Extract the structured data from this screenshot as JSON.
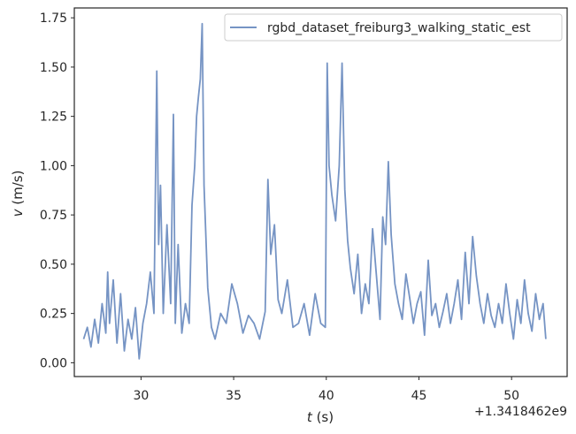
{
  "chart_data": {
    "type": "line",
    "xlabel_italic": "t",
    "xlabel_unit": " (s)",
    "ylabel_italic": "v",
    "ylabel_unit": " (m/s)",
    "x_offset_text": "+1.3418462e9",
    "xlim": [
      26.4,
      53.0
    ],
    "ylim": [
      -0.07,
      1.8
    ],
    "xticks": [
      30,
      35,
      40,
      45,
      50
    ],
    "xtick_labels": [
      "30",
      "35",
      "40",
      "45",
      "50"
    ],
    "yticks": [
      0.0,
      0.25,
      0.5,
      0.75,
      1.0,
      1.25,
      1.5,
      1.75
    ],
    "ytick_labels": [
      "0.00",
      "0.25",
      "0.50",
      "0.75",
      "1.00",
      "1.25",
      "1.50",
      "1.75"
    ],
    "grid": false,
    "legend_position": "top-right",
    "colors": {
      "series": "#7694c4",
      "frame": "#262626"
    },
    "series": [
      {
        "name": "rgbd_dataset_freiburg3_walking_static_est",
        "x": [
          26.9,
          27.1,
          27.3,
          27.5,
          27.7,
          27.9,
          28.1,
          28.2,
          28.3,
          28.5,
          28.7,
          28.9,
          29.1,
          29.3,
          29.5,
          29.7,
          29.9,
          30.1,
          30.3,
          30.5,
          30.7,
          30.85,
          30.95,
          31.05,
          31.2,
          31.4,
          31.6,
          31.75,
          31.85,
          32.0,
          32.2,
          32.4,
          32.6,
          32.75,
          32.9,
          33.0,
          33.1,
          33.2,
          33.3,
          33.4,
          33.6,
          33.8,
          34.0,
          34.3,
          34.6,
          34.9,
          35.2,
          35.5,
          35.8,
          36.1,
          36.4,
          36.7,
          36.85,
          37.0,
          37.2,
          37.4,
          37.6,
          37.9,
          38.2,
          38.5,
          38.8,
          39.1,
          39.4,
          39.7,
          39.95,
          40.05,
          40.15,
          40.3,
          40.5,
          40.7,
          40.85,
          41.0,
          41.15,
          41.3,
          41.5,
          41.7,
          41.9,
          42.1,
          42.3,
          42.5,
          42.7,
          42.9,
          43.05,
          43.2,
          43.35,
          43.5,
          43.7,
          43.9,
          44.1,
          44.3,
          44.5,
          44.7,
          44.9,
          45.1,
          45.3,
          45.5,
          45.7,
          45.9,
          46.1,
          46.3,
          46.5,
          46.7,
          46.9,
          47.1,
          47.3,
          47.5,
          47.7,
          47.9,
          48.1,
          48.3,
          48.5,
          48.7,
          48.9,
          49.1,
          49.3,
          49.5,
          49.7,
          49.9,
          50.1,
          50.3,
          50.5,
          50.7,
          50.9,
          51.1,
          51.3,
          51.5,
          51.7,
          51.85
        ],
        "y": [
          0.12,
          0.18,
          0.08,
          0.22,
          0.1,
          0.3,
          0.15,
          0.46,
          0.2,
          0.42,
          0.1,
          0.35,
          0.06,
          0.22,
          0.12,
          0.28,
          0.02,
          0.2,
          0.3,
          0.46,
          0.25,
          1.48,
          0.6,
          0.9,
          0.25,
          0.7,
          0.3,
          1.26,
          0.2,
          0.6,
          0.15,
          0.3,
          0.2,
          0.8,
          1.0,
          1.25,
          1.35,
          1.44,
          1.72,
          0.9,
          0.38,
          0.18,
          0.12,
          0.25,
          0.2,
          0.4,
          0.3,
          0.15,
          0.24,
          0.2,
          0.12,
          0.26,
          0.93,
          0.55,
          0.7,
          0.32,
          0.25,
          0.42,
          0.18,
          0.2,
          0.3,
          0.14,
          0.35,
          0.2,
          0.18,
          1.52,
          1.0,
          0.85,
          0.72,
          1.0,
          1.52,
          0.88,
          0.62,
          0.48,
          0.35,
          0.55,
          0.25,
          0.4,
          0.3,
          0.68,
          0.45,
          0.22,
          0.74,
          0.6,
          1.02,
          0.65,
          0.4,
          0.3,
          0.22,
          0.45,
          0.33,
          0.2,
          0.3,
          0.36,
          0.14,
          0.52,
          0.24,
          0.3,
          0.18,
          0.26,
          0.35,
          0.2,
          0.3,
          0.42,
          0.22,
          0.56,
          0.3,
          0.64,
          0.44,
          0.3,
          0.2,
          0.35,
          0.24,
          0.18,
          0.3,
          0.2,
          0.4,
          0.25,
          0.12,
          0.32,
          0.2,
          0.42,
          0.25,
          0.16,
          0.35,
          0.22,
          0.3,
          0.12
        ]
      }
    ]
  }
}
